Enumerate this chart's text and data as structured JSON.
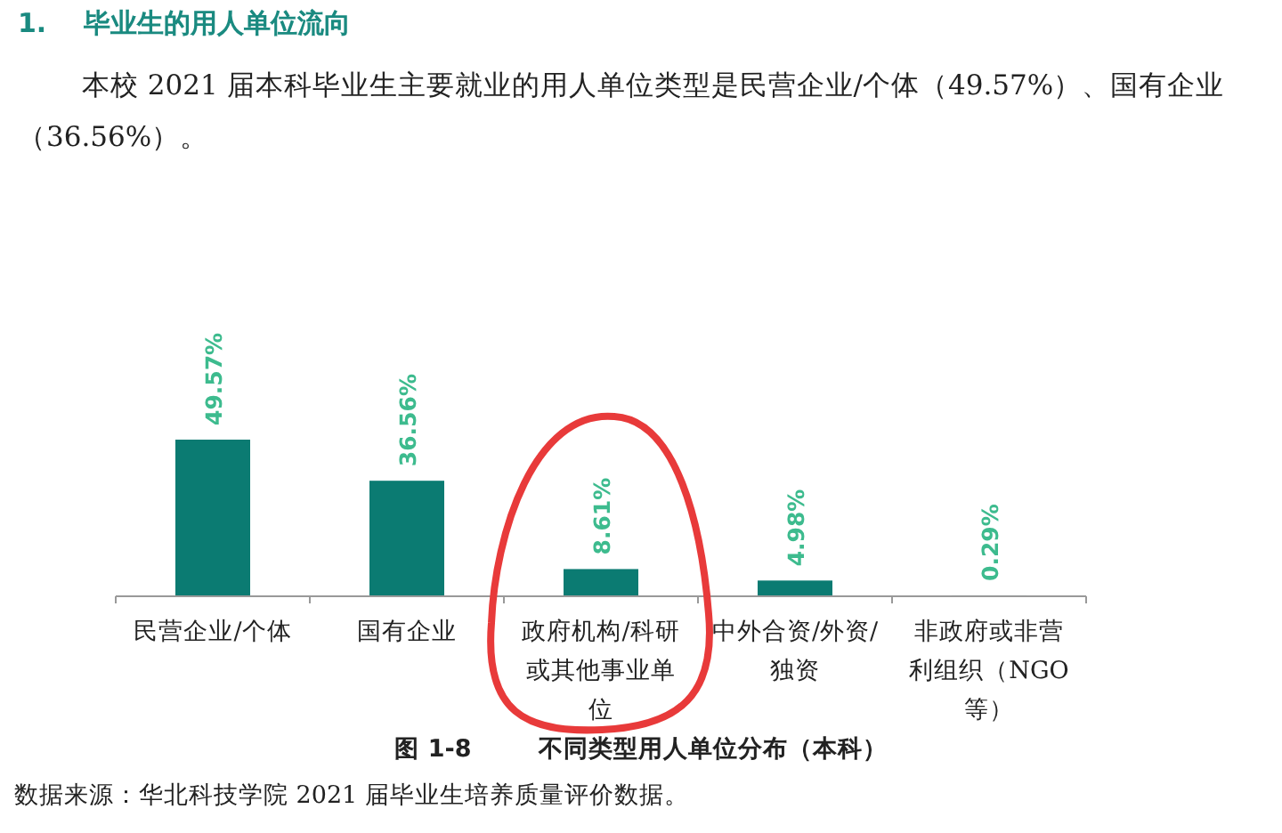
{
  "chart_data": {
    "type": "bar",
    "title": "1.    毕业生的用人单位流向",
    "subtitle": "本校 2021 届本科毕业生主要就业的用人单位类型是民营企业/个体（49.57%）、国有企业（36.56%）。",
    "categories": [
      "民营企业/个体",
      "国有企业",
      "政府机构/科研或其他事业单位",
      "中外合资/外资/独资",
      "非政府或非营利组织（NGO等）"
    ],
    "values": [
      49.57,
      36.56,
      8.61,
      4.98,
      0.29
    ],
    "value_labels": [
      "49.57%",
      "36.56%",
      "8.61%",
      "4.98%",
      "0.29%"
    ],
    "color": "#0b7b72",
    "annotations": [
      "图 1-8        不同类型用人单位分布（本科）",
      "数据来源：华北科技学院 2021 届毕业生培养质量评价数据。"
    ]
  }
}
